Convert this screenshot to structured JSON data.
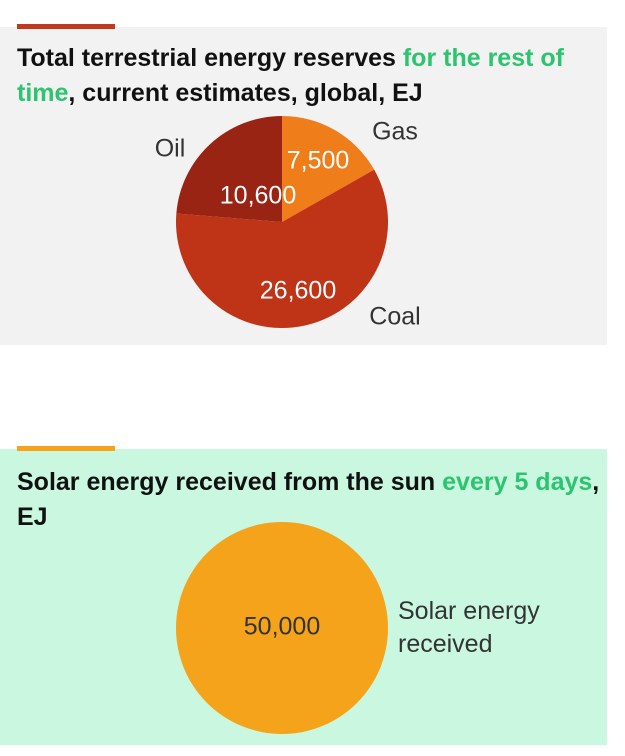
{
  "chart_data": [
    {
      "type": "pie",
      "title_parts": [
        "Total terrestrial energy reserves",
        "for the rest of time",
        ", current estimates, global, EJ"
      ],
      "title_highlight": [
        false,
        true,
        false
      ],
      "highlight_color": "#2cc46f",
      "accent_color": "#c0391f",
      "background": "#f2f2f2",
      "categories": [
        "Gas",
        "Coal",
        "Oil"
      ],
      "values": [
        7500,
        26600,
        10600
      ],
      "value_labels": [
        "7,500",
        "26,600",
        "10,600"
      ],
      "colors": [
        "#ef7d1a",
        "#bf3417",
        "#9a2413"
      ]
    },
    {
      "type": "pie",
      "title_parts": [
        "Solar energy received from the sun",
        "every 5 days",
        ", EJ"
      ],
      "title_highlight": [
        false,
        true,
        false
      ],
      "highlight_color": "#2cc46f",
      "accent_color": "#f5a31a",
      "background": "#c9f7e0",
      "categories": [
        "Solar energy received"
      ],
      "values": [
        50000
      ],
      "value_labels": [
        "50,000"
      ],
      "colors": [
        "#f5a31a"
      ]
    }
  ]
}
